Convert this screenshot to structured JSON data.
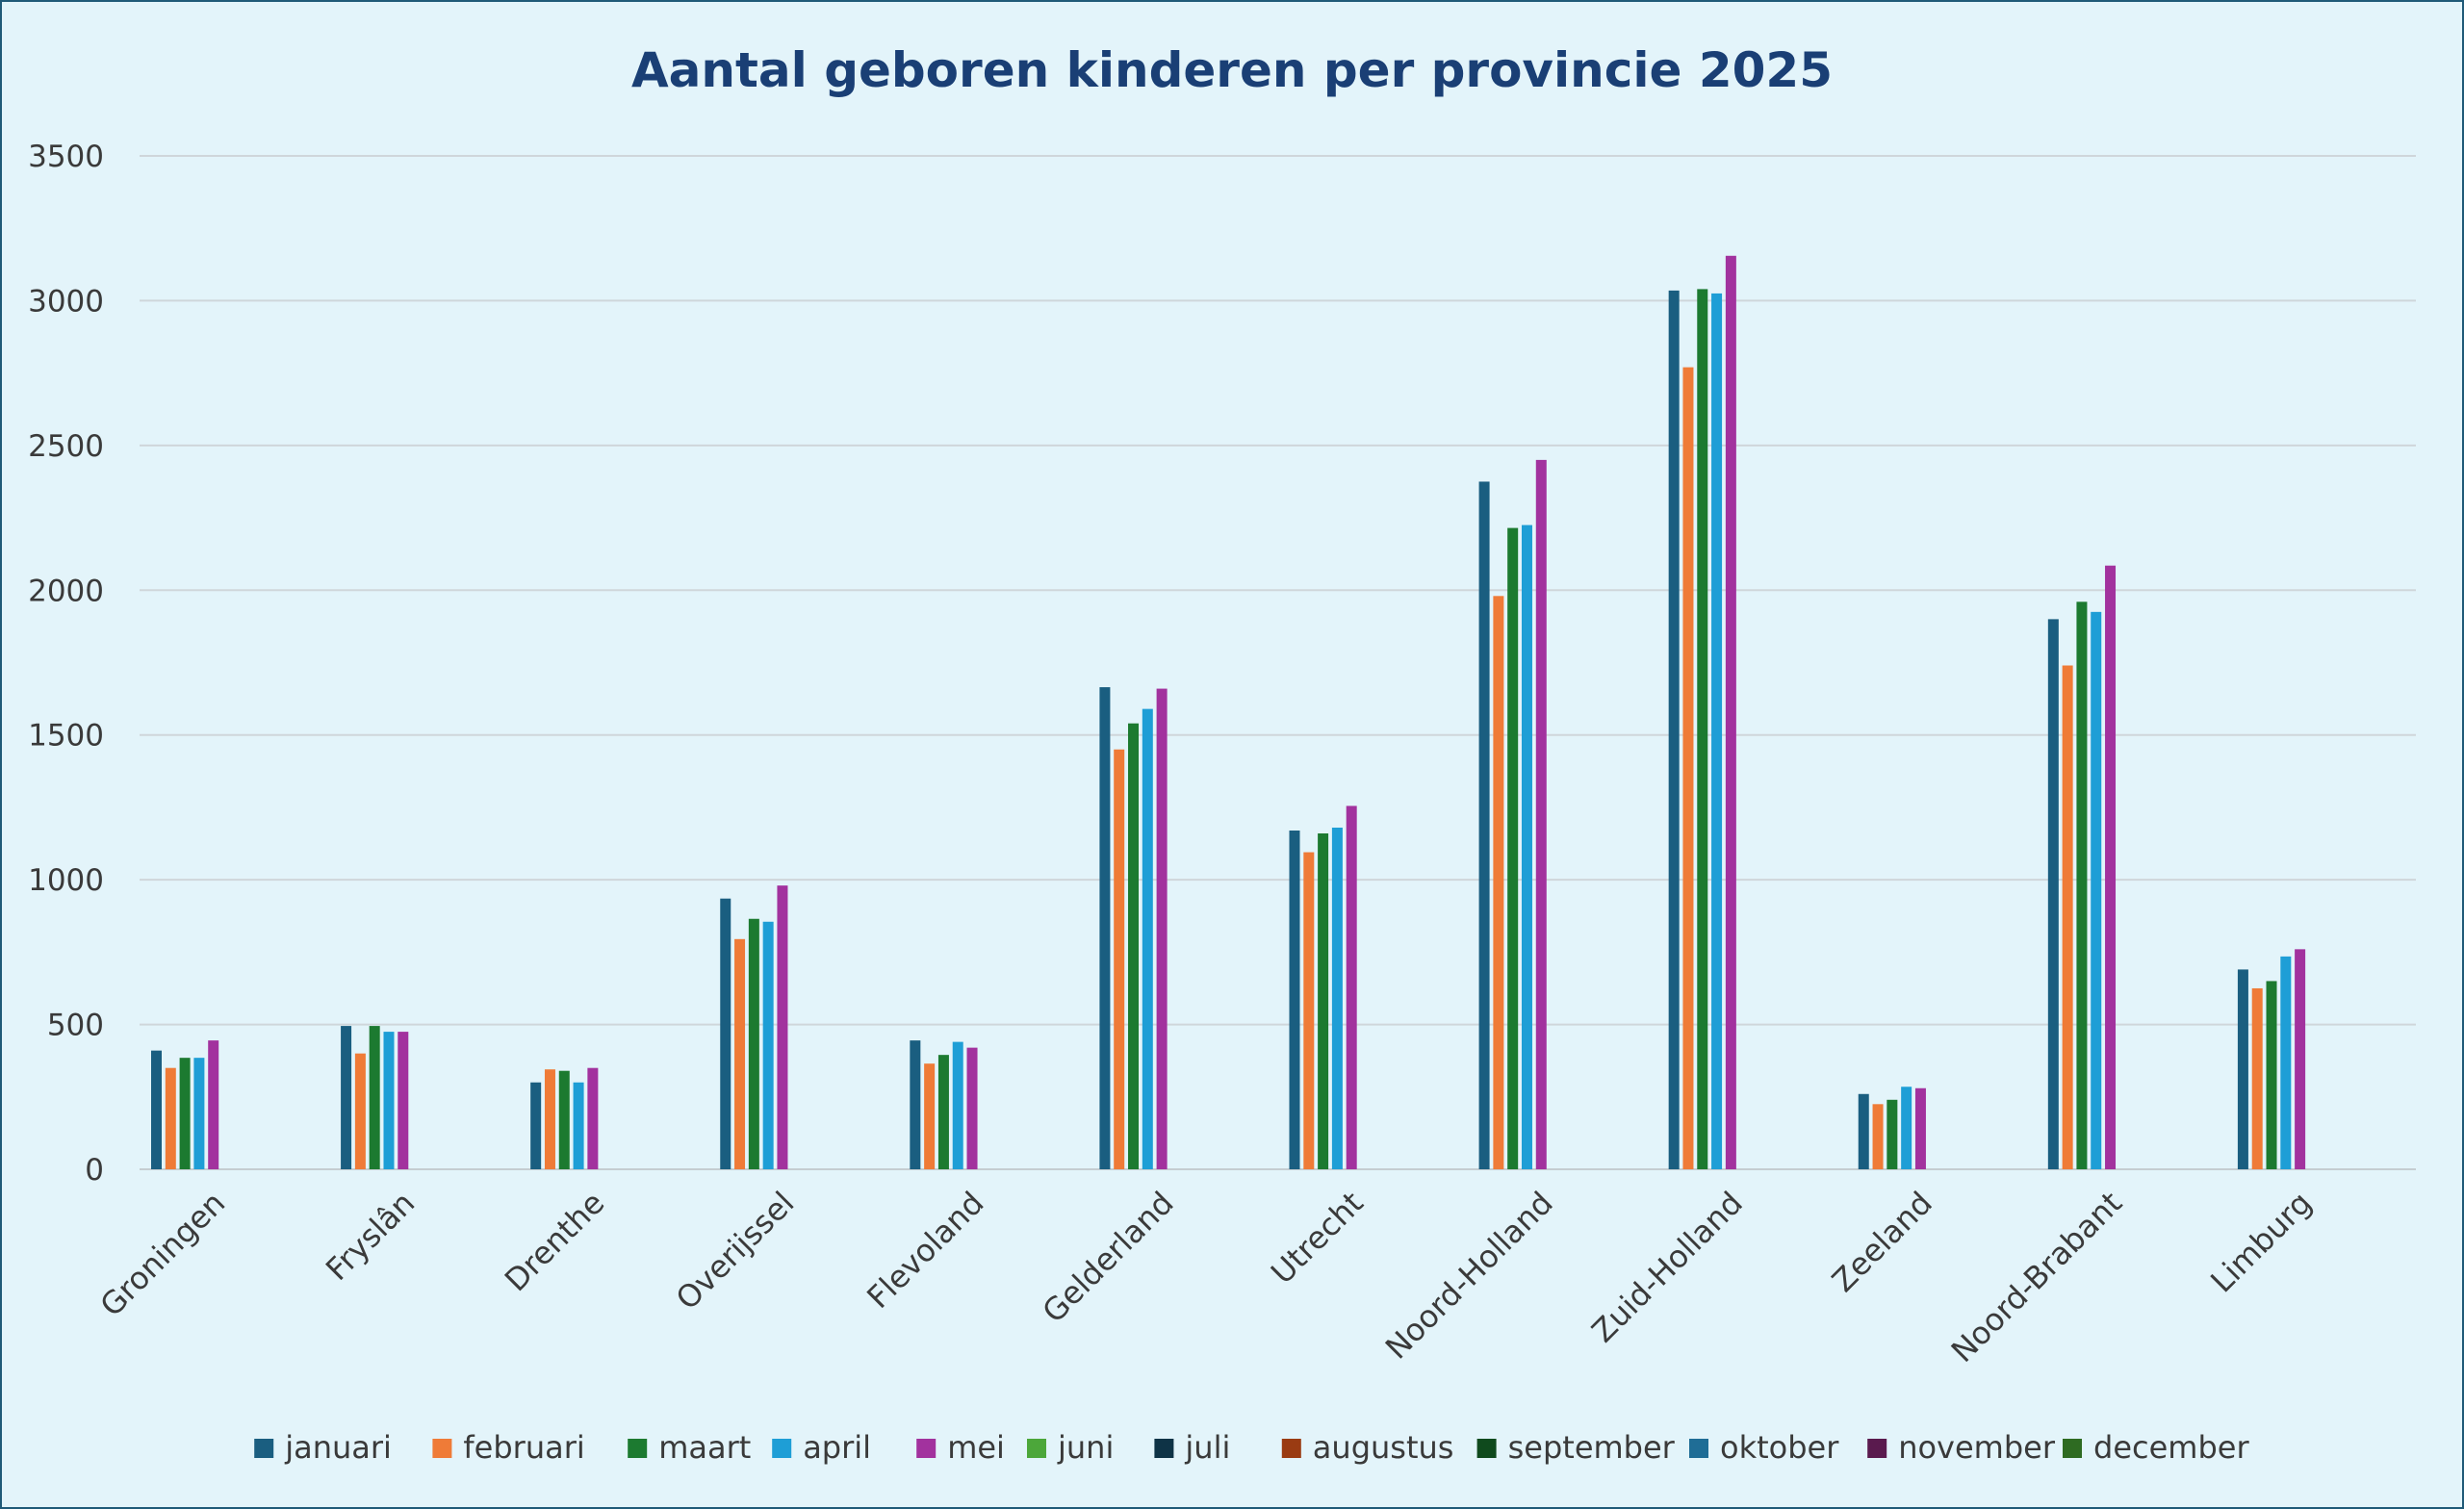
{
  "chart_data": {
    "type": "bar",
    "title": "Aantal geboren kinderen per provincie 2025",
    "xlabel": "",
    "ylabel": "",
    "ylim": [
      0,
      3500
    ],
    "yticks": [
      0,
      500,
      1000,
      1500,
      2000,
      2500,
      3000,
      3500
    ],
    "grid": true,
    "legend_position": "bottom",
    "categories": [
      "Groningen",
      "Fryslân",
      "Drenthe",
      "Overijssel",
      "Flevoland",
      "Gelderland",
      "Utrecht",
      "Noord-Holland",
      "Zuid-Holland",
      "Zeeland",
      "Noord-Brabant",
      "Limburg"
    ],
    "series": [
      {
        "name": "januari",
        "color": "#1a5e80",
        "values": [
          410,
          495,
          300,
          935,
          445,
          1665,
          1170,
          2375,
          3035,
          260,
          1900,
          690
        ]
      },
      {
        "name": "februari",
        "color": "#ef7b37",
        "values": [
          350,
          400,
          345,
          795,
          365,
          1450,
          1095,
          1980,
          2770,
          225,
          1740,
          625
        ]
      },
      {
        "name": "maart",
        "color": "#1c7a30",
        "values": [
          385,
          495,
          340,
          865,
          395,
          1540,
          1160,
          2215,
          3040,
          240,
          1960,
          650
        ]
      },
      {
        "name": "april",
        "color": "#1e9ed6",
        "values": [
          385,
          475,
          300,
          855,
          440,
          1590,
          1180,
          2225,
          3025,
          285,
          1925,
          735
        ]
      },
      {
        "name": "mei",
        "color": "#a2329e",
        "values": [
          445,
          475,
          350,
          980,
          420,
          1660,
          1255,
          2450,
          3155,
          280,
          2085,
          760
        ]
      },
      {
        "name": "juni",
        "color": "#4ca73a",
        "values": [
          null,
          null,
          null,
          null,
          null,
          null,
          null,
          null,
          null,
          null,
          null,
          null
        ]
      },
      {
        "name": "juli",
        "color": "#0e3346",
        "values": [
          null,
          null,
          null,
          null,
          null,
          null,
          null,
          null,
          null,
          null,
          null,
          null
        ]
      },
      {
        "name": "augustus",
        "color": "#9a3b12",
        "values": [
          null,
          null,
          null,
          null,
          null,
          null,
          null,
          null,
          null,
          null,
          null,
          null
        ]
      },
      {
        "name": "september",
        "color": "#0f4a1d",
        "values": [
          null,
          null,
          null,
          null,
          null,
          null,
          null,
          null,
          null,
          null,
          null,
          null
        ]
      },
      {
        "name": "oktober",
        "color": "#1f6d96",
        "values": [
          null,
          null,
          null,
          null,
          null,
          null,
          null,
          null,
          null,
          null,
          null,
          null
        ]
      },
      {
        "name": "november",
        "color": "#5a1a4e",
        "values": [
          null,
          null,
          null,
          null,
          null,
          null,
          null,
          null,
          null,
          null,
          null,
          null
        ]
      },
      {
        "name": "december",
        "color": "#2e6b22",
        "values": [
          null,
          null,
          null,
          null,
          null,
          null,
          null,
          null,
          null,
          null,
          null,
          null
        ]
      }
    ]
  }
}
